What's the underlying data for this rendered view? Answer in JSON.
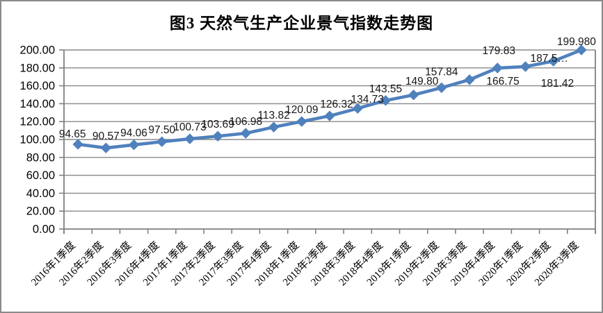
{
  "title": "图3 天然气生产企业景气指数走势图",
  "chart_data": {
    "type": "line",
    "title": "图3 天然气生产企业景气指数走势图",
    "categories": [
      "2016年1季度",
      "2016年2季度",
      "2016年3季度",
      "2016年4季度",
      "2017年1季度",
      "2017年2季度",
      "2017年3季度",
      "2017年4季度",
      "2018年1季度",
      "2018年2季度",
      "2018年3季度",
      "2018年4季度",
      "2019年1季度",
      "2019年2季度",
      "2019年3季度",
      "2019年4季度",
      "2020年1季度",
      "2020年2季度",
      "2020年3季度"
    ],
    "series": [
      {
        "name": "天然气生产企业景气指数",
        "values": [
          94.65,
          90.57,
          94.06,
          97.5,
          100.73,
          103.69,
          106.98,
          113.82,
          120.09,
          126.32,
          134.73,
          143.55,
          149.8,
          157.84,
          166.75,
          179.83,
          181.42,
          187.5,
          199.98
        ]
      }
    ],
    "data_labels": [
      "94.65",
      "90.57",
      "94.06",
      "97.50",
      "100.73",
      "103.69",
      "106.98",
      "113.82",
      "120.09",
      "126.32",
      "134.73",
      "143.55",
      "149.80",
      "157.84",
      "166.75",
      "179.83",
      "181.42",
      "187.5…",
      "199.980"
    ],
    "y_tick_labels": [
      "0.00",
      "20.00",
      "40.00",
      "60.00",
      "80.00",
      "100.00",
      "120.00",
      "140.00",
      "160.00",
      "180.00",
      "200.00"
    ],
    "ylim": [
      0,
      200
    ],
    "y_step": 20,
    "grid": true,
    "legend": "none",
    "xlabel": "",
    "ylabel": "",
    "line_color": "#4F81BD",
    "marker": "diamond",
    "gridline_color": "#888888",
    "axis_color": "#7f7f7f",
    "label_color": "#151515",
    "label_offsets": {
      "0": [
        -8,
        2
      ],
      "9": [
        10,
        0
      ],
      "10": [
        14,
        4
      ],
      "12": [
        12,
        -3
      ],
      "13": [
        0,
        -6
      ],
      "14": [
        48,
        19
      ],
      "15": [
        2,
        -8
      ],
      "16": [
        46,
        41
      ],
      "17": [
        -6,
        13
      ],
      "18": [
        -7,
        5
      ]
    }
  }
}
